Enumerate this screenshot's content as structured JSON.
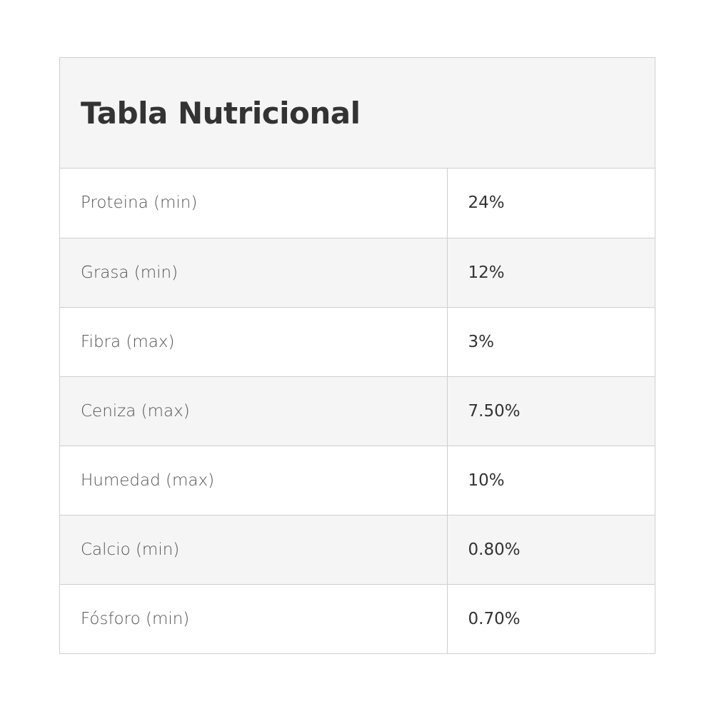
{
  "header": {
    "title": "Tabla Nutricional"
  },
  "table": {
    "rows": [
      [
        "Proteina (min)",
        "24%"
      ],
      [
        "Grasa (min)",
        "12%"
      ],
      [
        "Fibra (max)",
        "3%"
      ],
      [
        "Ceniza (max)",
        "7.50%"
      ],
      [
        "Humedad (max)",
        "10%"
      ],
      [
        "Calcio (min)",
        "0.80%"
      ],
      [
        "Fósforo (min)",
        "0.70%"
      ]
    ]
  }
}
